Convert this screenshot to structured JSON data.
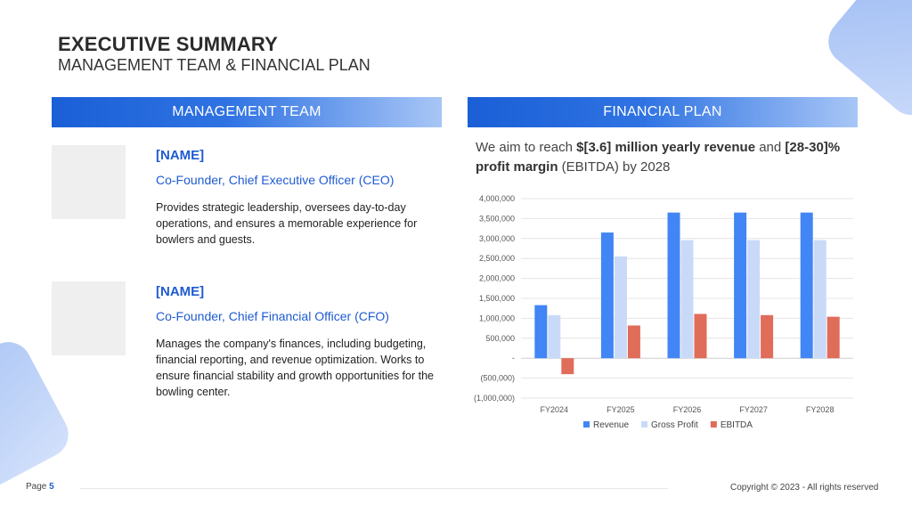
{
  "header": {
    "title": "EXECUTIVE SUMMARY",
    "subtitle": "MANAGEMENT TEAM & FINANCIAL PLAN"
  },
  "management": {
    "heading": "MANAGEMENT TEAM",
    "members": [
      {
        "name": "[NAME]",
        "role": "Co-Founder, Chief Executive Officer (CEO)",
        "description": "Provides strategic leadership, oversees day-to-day operations, and ensures a memorable experience for bowlers and guests."
      },
      {
        "name": "[NAME]",
        "role": "Co-Founder, Chief Financial Officer (CFO)",
        "description": "Manages the company's finances, including budgeting, financial reporting, and revenue optimization. Works to ensure financial stability and growth opportunities for the bowling center."
      }
    ]
  },
  "financial": {
    "heading": "FINANCIAL PLAN",
    "goal": {
      "pre": "We aim to reach ",
      "bold1": "$[3.6] million yearly revenue",
      "mid": " and ",
      "bold2": "[28-30]% profit margin",
      "post": " (EBITDA) by 2028"
    }
  },
  "chart_data": {
    "type": "bar",
    "categories": [
      "FY2024",
      "FY2025",
      "FY2026",
      "FY2027",
      "FY2028"
    ],
    "series": [
      {
        "name": "Revenue",
        "color": "#4285f4",
        "values": [
          1330000,
          3150000,
          3650000,
          3650000,
          3650000
        ]
      },
      {
        "name": "Gross Profit",
        "color": "#c9daf8",
        "values": [
          1080000,
          2550000,
          2960000,
          2960000,
          2960000
        ]
      },
      {
        "name": "EBITDA",
        "color": "#e06c5a",
        "values": [
          -400000,
          820000,
          1110000,
          1080000,
          1040000
        ]
      }
    ],
    "ylim": [
      -1000000,
      4000000
    ],
    "yticks": [
      4000000,
      3500000,
      3000000,
      2500000,
      2000000,
      1500000,
      1000000,
      500000,
      0,
      -500000,
      -1000000
    ],
    "ytick_labels": [
      "4,000,000",
      "3,500,000",
      "3,000,000",
      "2,500,000",
      "2,000,000",
      "1,500,000",
      "1,000,000",
      "500,000",
      "-",
      "(500,000)",
      "(1,000,000)"
    ],
    "grid": true,
    "legend": "bottom"
  },
  "footer": {
    "page_label": "Page",
    "page_number": "5",
    "copyright": "Copyright © 2023 - All rights reserved"
  }
}
